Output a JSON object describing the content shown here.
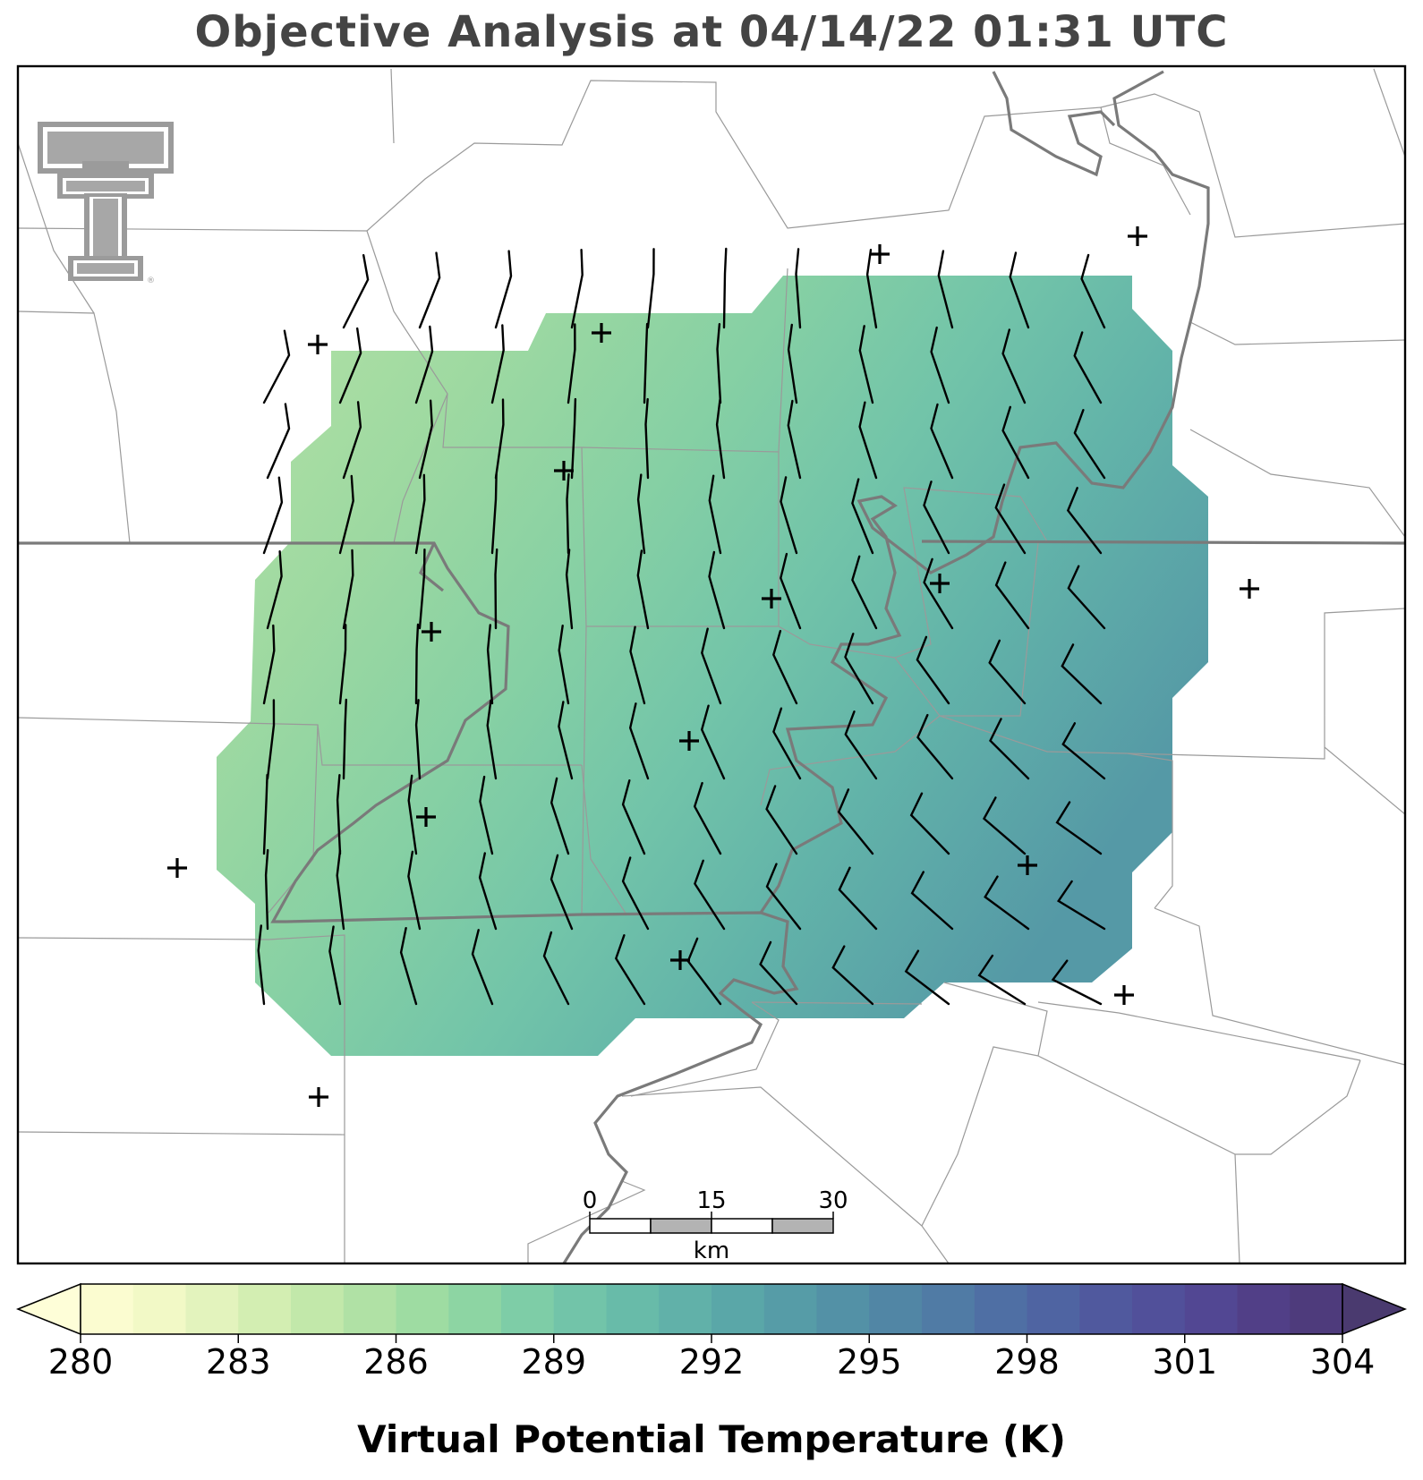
{
  "title": "Objective Analysis at 04/14/22 01:31 UTC",
  "colorbar": {
    "label": "Virtual Potential Temperature (K)",
    "ticks": [
      "280",
      "283",
      "286",
      "289",
      "292",
      "295",
      "298",
      "301",
      "304"
    ],
    "colors": [
      "#fbfcd0",
      "#f2f9c6",
      "#e3f3bd",
      "#d3eeb2",
      "#c2e8aa",
      "#b0e1a5",
      "#9edca2",
      "#8dd5a3",
      "#7ecda7",
      "#72c4a9",
      "#68bba9",
      "#61b1a9",
      "#5aa7a8",
      "#569ca7",
      "#5391a6",
      "#5186a5",
      "#507ba5",
      "#4f6fa4",
      "#4f64a2",
      "#50599e",
      "#51509a",
      "#524793",
      "#513f87",
      "#4e3b7c"
    ],
    "under_color": "#fefed8",
    "over_color": "#4a3a6f"
  },
  "scalebar": {
    "labels": [
      "0",
      "15",
      "30"
    ],
    "unit": "km"
  },
  "logo": "texas-tech-double-t-logo",
  "colors": {
    "boundary_major": "#7a7a7a",
    "boundary_minor": "#9a9a9a",
    "barb": "#000000"
  }
}
